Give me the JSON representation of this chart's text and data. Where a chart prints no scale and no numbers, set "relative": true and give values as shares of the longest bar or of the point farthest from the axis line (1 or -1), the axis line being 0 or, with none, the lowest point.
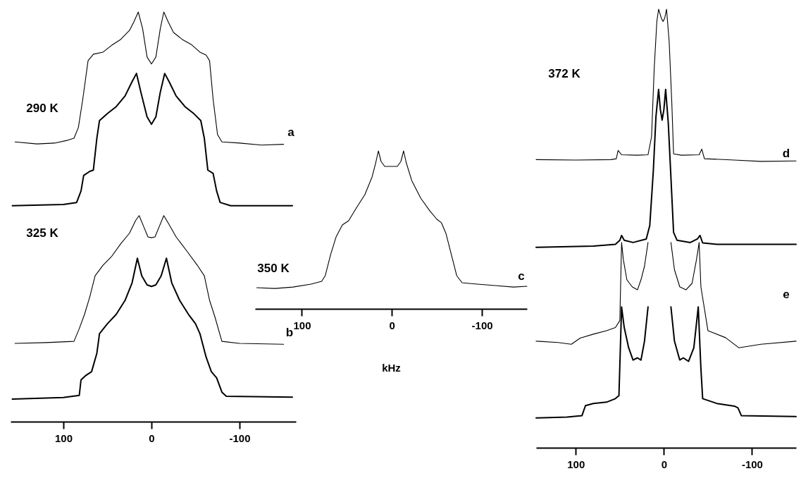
{
  "chart_data": [
    {
      "type": "line",
      "relative": true,
      "xlim": [
        160,
        -164
      ],
      "xticks": [
        100,
        0,
        -100
      ],
      "annotations": [
        "290 K",
        "a",
        "325 K",
        "b"
      ],
      "series": [
        {
          "color": "#000000",
          "x": [
            155,
            130,
            110,
            95,
            88,
            83,
            78,
            72,
            66,
            55,
            45,
            35,
            25,
            20,
            15,
            10,
            5,
            0,
            -5,
            -10,
            -14,
            -19,
            -25,
            -35,
            -45,
            -55,
            -62,
            -66,
            -70,
            -75,
            -80,
            -100,
            -125,
            -150
          ],
          "values": [
            0.683,
            0.678,
            0.68,
            0.687,
            0.692,
            0.718,
            0.787,
            0.881,
            0.897,
            0.902,
            0.919,
            0.933,
            0.955,
            0.976,
            1.0,
            0.959,
            0.89,
            0.873,
            0.89,
            0.959,
            1.0,
            0.976,
            0.95,
            0.933,
            0.921,
            0.902,
            0.895,
            0.881,
            0.787,
            0.701,
            0.683,
            0.68,
            0.675,
            0.677
          ]
        },
        {
          "color": "#000000",
          "x": [
            158,
            100,
            85,
            80,
            77,
            70,
            66,
            62,
            59,
            50,
            40,
            30,
            22,
            17,
            12,
            5,
            0,
            -5,
            -10,
            -15,
            -20,
            -28,
            -38,
            -48,
            -56,
            -60,
            -64,
            -70,
            -74,
            -78,
            -90,
            -160
          ],
          "values": [
            0.527,
            0.53,
            0.535,
            0.563,
            0.601,
            0.611,
            0.614,
            0.692,
            0.735,
            0.752,
            0.769,
            0.795,
            0.83,
            0.85,
            0.804,
            0.744,
            0.726,
            0.744,
            0.804,
            0.85,
            0.83,
            0.795,
            0.769,
            0.752,
            0.735,
            0.692,
            0.614,
            0.606,
            0.563,
            0.535,
            0.527,
            0.527
          ]
        },
        {
          "color": "#000000",
          "x": [
            155,
            120,
            88,
            82,
            76,
            70,
            64,
            55,
            45,
            35,
            25,
            18,
            14,
            9,
            4,
            0,
            -4,
            -9,
            -14,
            -19,
            -28,
            -40,
            -52,
            -60,
            -66,
            -72,
            -80,
            -100,
            -150
          ],
          "values": [
            0.191,
            0.193,
            0.196,
            0.227,
            0.262,
            0.305,
            0.356,
            0.382,
            0.404,
            0.434,
            0.46,
            0.491,
            0.503,
            0.477,
            0.451,
            0.449,
            0.451,
            0.477,
            0.503,
            0.485,
            0.451,
            0.417,
            0.382,
            0.356,
            0.296,
            0.256,
            0.196,
            0.191,
            0.189
          ]
        },
        {
          "color": "#000000",
          "x": [
            158,
            100,
            82,
            80,
            75,
            68,
            62,
            59,
            50,
            40,
            30,
            22,
            16,
            11,
            5,
            0,
            -5,
            -11,
            -17,
            -23,
            -32,
            -42,
            -50,
            -55,
            -62,
            -68,
            -74,
            -80,
            -85,
            -160
          ],
          "values": [
            0.055,
            0.059,
            0.064,
            0.102,
            0.112,
            0.122,
            0.167,
            0.215,
            0.239,
            0.262,
            0.296,
            0.339,
            0.399,
            0.356,
            0.334,
            0.33,
            0.334,
            0.356,
            0.399,
            0.339,
            0.296,
            0.262,
            0.239,
            0.215,
            0.158,
            0.122,
            0.107,
            0.072,
            0.062,
            0.06
          ]
        }
      ]
    },
    {
      "type": "line",
      "relative": true,
      "xlim": [
        152,
        -150
      ],
      "xticks": [
        100,
        0,
        -100
      ],
      "xlabel": "kHz",
      "annotations": [
        "350 K",
        "c"
      ],
      "series": [
        {
          "color": "#000000",
          "x": [
            150,
            130,
            110,
            90,
            78,
            74,
            68,
            62,
            55,
            48,
            40,
            30,
            22,
            18,
            15,
            12,
            8,
            0,
            -6,
            -10,
            -13,
            -16,
            -22,
            -32,
            -42,
            -50,
            -55,
            -60,
            -66,
            -72,
            -78,
            -95,
            -115,
            -135,
            -150
          ],
          "values": [
            0.134,
            0.129,
            0.138,
            0.156,
            0.174,
            0.21,
            0.344,
            0.455,
            0.531,
            0.558,
            0.634,
            0.723,
            0.835,
            0.924,
            1.0,
            0.933,
            0.902,
            0.902,
            0.902,
            0.933,
            1.0,
            0.924,
            0.813,
            0.701,
            0.621,
            0.567,
            0.545,
            0.478,
            0.344,
            0.21,
            0.165,
            0.156,
            0.147,
            0.138,
            0.143
          ]
        }
      ]
    },
    {
      "type": "line",
      "relative": true,
      "xlim": [
        145,
        -150
      ],
      "xticks": [
        100,
        0,
        -100
      ],
      "annotations": [
        "372 K",
        "d",
        "e"
      ],
      "series": [
        {
          "color": "#000000",
          "x": [
            145,
            100,
            60,
            54,
            52,
            48,
            30,
            18,
            14,
            11,
            8,
            6,
            3,
            1,
            -1,
            -3,
            -6,
            -9,
            -11,
            -20,
            -40,
            -43,
            -46,
            -80,
            -110,
            -150
          ],
          "values": [
            0.657,
            0.656,
            0.657,
            0.659,
            0.678,
            0.668,
            0.667,
            0.668,
            0.709,
            0.864,
            0.972,
            1.0,
            0.98,
            0.972,
            0.98,
            1.0,
            0.926,
            0.786,
            0.67,
            0.667,
            0.668,
            0.681,
            0.659,
            0.656,
            0.653,
            0.654
          ]
        },
        {
          "color": "#000000",
          "x": [
            145,
            80,
            55,
            50,
            48,
            45,
            35,
            20,
            16,
            12,
            9,
            6,
            4,
            2,
            0,
            -2,
            -5,
            -8,
            -11,
            -15,
            -30,
            -38,
            -41,
            -44,
            -60,
            -150
          ],
          "values": [
            0.457,
            0.46,
            0.464,
            0.473,
            0.484,
            0.473,
            0.468,
            0.476,
            0.507,
            0.631,
            0.755,
            0.817,
            0.771,
            0.747,
            0.771,
            0.817,
            0.74,
            0.616,
            0.491,
            0.473,
            0.468,
            0.476,
            0.484,
            0.467,
            0.464,
            0.464
          ]
        },
        {
          "color": "#000000",
          "x": [
            145,
            120,
            105,
            95,
            80,
            65,
            55,
            50,
            48,
            46,
            42,
            36,
            30,
            26,
            22,
            18,
            5,
            -8,
            -12,
            -18,
            -25,
            -32,
            -37,
            -40,
            -42,
            -50,
            -70,
            -85,
            -110,
            -150
          ],
          "values": [
            0.243,
            0.24,
            0.236,
            0.25,
            0.259,
            0.267,
            0.274,
            0.29,
            0.468,
            0.429,
            0.383,
            0.367,
            0.36,
            0.383,
            0.414,
            0.468,
            null,
            0.468,
            0.406,
            0.367,
            0.36,
            0.375,
            0.429,
            0.468,
            0.367,
            0.267,
            0.251,
            0.228,
            0.236,
            0.243
          ]
        },
        {
          "color": "#000000",
          "x": [
            145,
            110,
            93,
            89,
            80,
            65,
            55,
            51,
            48,
            45,
            40,
            35,
            30,
            26,
            22,
            18,
            5,
            -8,
            -12,
            -18,
            -22,
            -28,
            -34,
            -39,
            -42,
            -44,
            -60,
            -80,
            -84,
            -88,
            -150
          ],
          "values": [
            0.068,
            0.07,
            0.073,
            0.096,
            0.101,
            0.104,
            0.112,
            0.119,
            0.321,
            0.274,
            0.228,
            0.2,
            0.205,
            0.2,
            0.243,
            0.321,
            null,
            0.321,
            0.243,
            0.2,
            0.205,
            0.197,
            0.228,
            0.321,
            0.181,
            0.112,
            0.101,
            0.095,
            0.091,
            0.073,
            0.071
          ]
        }
      ]
    }
  ]
}
